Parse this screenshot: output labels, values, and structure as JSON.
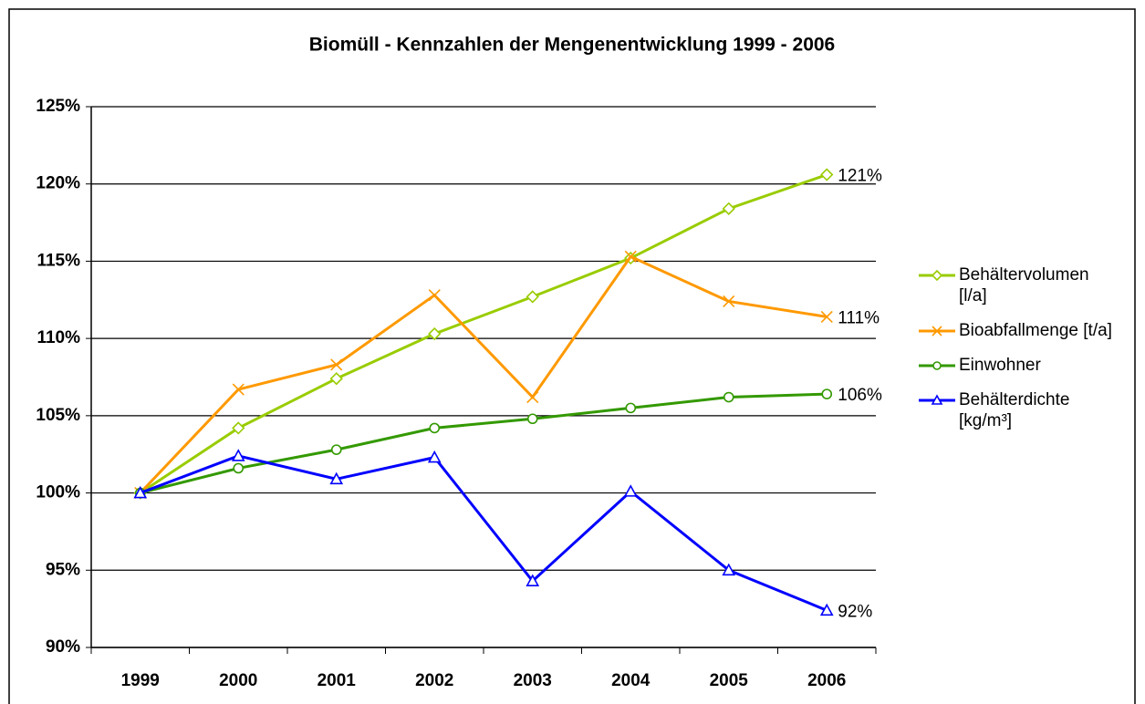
{
  "chart_data": {
    "type": "line",
    "title": "Biomüll - Kennzahlen der Mengenentwicklung 1999 - 2006",
    "categories": [
      "1999",
      "2000",
      "2001",
      "2002",
      "2003",
      "2004",
      "2005",
      "2006"
    ],
    "series": [
      {
        "name": "Behältervolumen [l/a]",
        "color": "#99cc00",
        "marker": "diamond",
        "values": [
          100,
          104.2,
          107.4,
          110.3,
          112.7,
          115.2,
          118.4,
          120.6
        ],
        "value_labels": [
          null,
          null,
          null,
          null,
          null,
          null,
          null,
          "121%"
        ]
      },
      {
        "name": "Bioabfallmenge [t/a]",
        "color": "#ff9900",
        "marker": "x",
        "values": [
          100,
          106.7,
          108.3,
          112.8,
          106.2,
          115.3,
          112.4,
          111.4
        ],
        "value_labels": [
          null,
          null,
          null,
          null,
          null,
          null,
          null,
          "111%"
        ]
      },
      {
        "name": "Einwohner",
        "color": "#339900",
        "marker": "circle",
        "values": [
          100,
          101.6,
          102.8,
          104.2,
          104.8,
          105.5,
          106.2,
          106.4
        ],
        "value_labels": [
          null,
          null,
          null,
          null,
          null,
          null,
          null,
          "106%"
        ]
      },
      {
        "name": "Behälterdichte [kg/m³]",
        "color": "#0000ff",
        "marker": "triangle",
        "values": [
          100,
          102.4,
          100.9,
          102.3,
          94.3,
          100.1,
          95.0,
          92.4
        ],
        "value_labels": [
          null,
          null,
          null,
          null,
          null,
          null,
          null,
          "92%"
        ]
      }
    ],
    "ylim": [
      90,
      125
    ],
    "yticks": [
      {
        "value": 90,
        "label": "90%"
      },
      {
        "value": 95,
        "label": "95%"
      },
      {
        "value": 100,
        "label": "100%"
      },
      {
        "value": 105,
        "label": "105%"
      },
      {
        "value": 110,
        "label": "110%"
      },
      {
        "value": 115,
        "label": "115%"
      },
      {
        "value": 120,
        "label": "120%"
      },
      {
        "value": 125,
        "label": "125%"
      }
    ],
    "grid": true,
    "legend": "right"
  }
}
